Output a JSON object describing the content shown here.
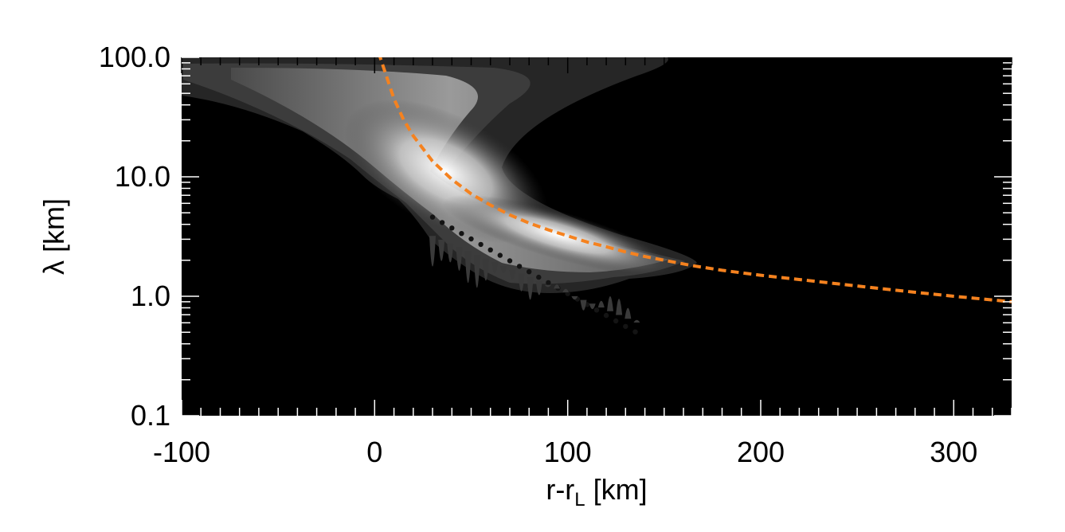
{
  "chart_data": {
    "type": "heatmap",
    "xlabel": {
      "main": "r-r",
      "subscript": "L",
      "unit": " [km]"
    },
    "ylabel": "λ [km]",
    "xlim": [
      -100,
      330
    ],
    "ylim": [
      0.1,
      100
    ],
    "yscale": "log",
    "x_ticks": [
      {
        "value": -100,
        "label": "-100"
      },
      {
        "value": 0,
        "label": "0"
      },
      {
        "value": 100,
        "label": "100"
      },
      {
        "value": 200,
        "label": "200"
      },
      {
        "value": 300,
        "label": "300"
      }
    ],
    "y_ticks": [
      {
        "value": 0.1,
        "label": "0.1"
      },
      {
        "value": 1,
        "label": "1.0"
      },
      {
        "value": 10,
        "label": "10.0"
      },
      {
        "value": 100,
        "label": "100.0"
      }
    ],
    "colormap": "grayscale",
    "background_color": "#000000",
    "overlay_curve": {
      "style": "dashed",
      "color": "#f5821f",
      "x": [
        2,
        10,
        15,
        20,
        30,
        40,
        50,
        60,
        70,
        80,
        90,
        100,
        110,
        120,
        130,
        140,
        150,
        165,
        180,
        200,
        220,
        240,
        260,
        280,
        300,
        330
      ],
      "y": [
        110,
        45,
        30,
        22,
        13.5,
        9.5,
        7.2,
        5.8,
        4.8,
        4.1,
        3.6,
        3.2,
        2.85,
        2.6,
        2.35,
        2.15,
        2.0,
        1.8,
        1.65,
        1.5,
        1.38,
        1.27,
        1.17,
        1.08,
        1.0,
        0.9
      ]
    }
  }
}
